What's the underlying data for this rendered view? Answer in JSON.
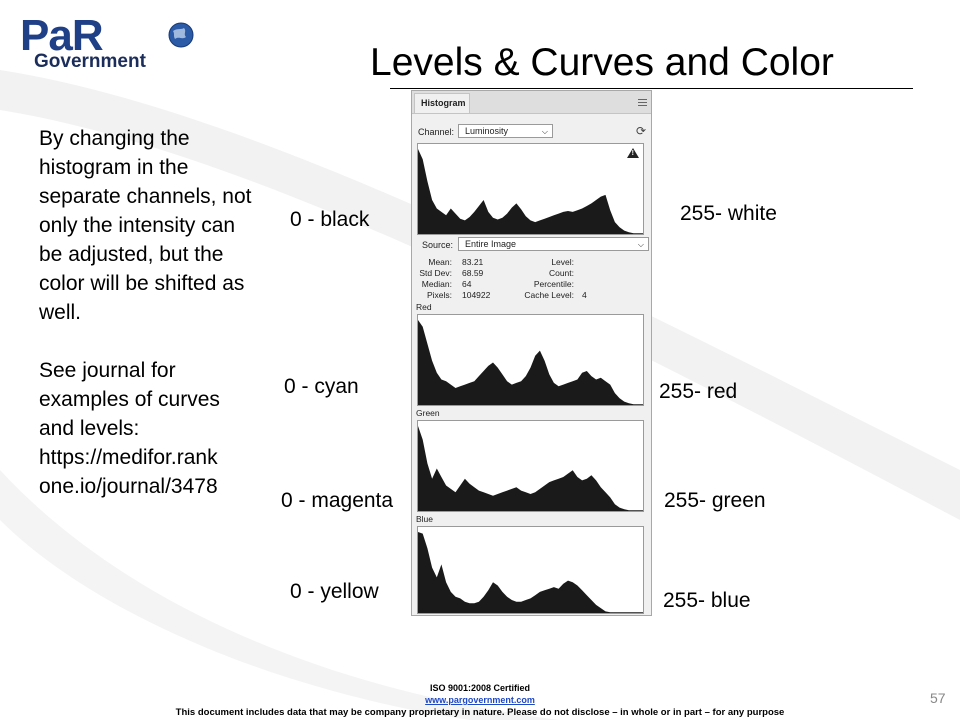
{
  "logo": {
    "par": "PaR",
    "government": "Government"
  },
  "title": "Levels & Curves and Color",
  "body": {
    "paragraph1": "By changing the histogram in the separate channels, not only the intensity can be adjusted, but the color will be shifted as well.",
    "paragraph2_line1": "See journal for examples of curves and levels:",
    "paragraph2_line2": "https://medifor.rank one.io/journal/3478"
  },
  "labels": {
    "black": "0 - black",
    "white": "255- white",
    "cyan": "0 - cyan",
    "red": "255- red",
    "magenta": "0 - magenta",
    "green": "255- green",
    "yellow": "0 - yellow",
    "blue": "255- blue"
  },
  "panel": {
    "tab": "Histogram",
    "channel_label": "Channel:",
    "channel_value": "Luminosity",
    "source_label": "Source:",
    "source_value": "Entire Image",
    "stats": {
      "mean_label": "Mean:",
      "mean": "83.21",
      "std_label": "Std Dev:",
      "std": "68.59",
      "median_label": "Median:",
      "median": "64",
      "pixels_label": "Pixels:",
      "pixels": "104922",
      "level_label": "Level:",
      "count_label": "Count:",
      "percentile_label": "Percentile:",
      "cache_label": "Cache Level:",
      "cache": "4"
    },
    "channels": {
      "red": "Red",
      "green": "Green",
      "blue": "Blue"
    },
    "icons": {
      "menu": "panel-menu-icon",
      "refresh": "refresh-icon",
      "warning": "warning-icon",
      "dropdown": "chevron-down-icon"
    }
  },
  "chart_data": [
    {
      "type": "area",
      "name": "Luminosity",
      "values": [
        100,
        88,
        62,
        40,
        30,
        26,
        22,
        30,
        24,
        18,
        16,
        20,
        26,
        33,
        40,
        26,
        19,
        17,
        19,
        24,
        31,
        36,
        29,
        21,
        16,
        14,
        16,
        18,
        20,
        22,
        24,
        26,
        27,
        26,
        28,
        30,
        33,
        36,
        40,
        44,
        46,
        28,
        14,
        8,
        4,
        2,
        1,
        1,
        1
      ]
    },
    {
      "type": "area",
      "name": "Red",
      "values": [
        100,
        92,
        72,
        52,
        38,
        30,
        28,
        24,
        20,
        22,
        24,
        26,
        28,
        34,
        40,
        46,
        50,
        44,
        36,
        28,
        24,
        26,
        28,
        34,
        44,
        58,
        64,
        52,
        36,
        26,
        22,
        24,
        26,
        28,
        30,
        38,
        40,
        34,
        30,
        32,
        28,
        24,
        14,
        8,
        4,
        2,
        1,
        1,
        1
      ]
    },
    {
      "type": "area",
      "name": "Green",
      "values": [
        100,
        84,
        56,
        38,
        50,
        40,
        30,
        26,
        22,
        30,
        38,
        32,
        28,
        24,
        22,
        20,
        18,
        20,
        22,
        24,
        26,
        28,
        24,
        22,
        20,
        22,
        26,
        30,
        34,
        36,
        38,
        40,
        44,
        48,
        40,
        36,
        38,
        42,
        36,
        28,
        22,
        16,
        8,
        4,
        2,
        1,
        1,
        1,
        1
      ]
    },
    {
      "type": "area",
      "name": "Blue",
      "values": [
        100,
        98,
        80,
        56,
        44,
        60,
        38,
        26,
        20,
        18,
        14,
        12,
        12,
        14,
        20,
        28,
        38,
        34,
        26,
        20,
        16,
        14,
        14,
        16,
        18,
        22,
        26,
        28,
        30,
        32,
        30,
        36,
        40,
        38,
        34,
        28,
        22,
        16,
        10,
        6,
        2,
        1,
        1,
        1,
        1,
        1,
        1,
        1,
        1
      ]
    }
  ],
  "footer": {
    "iso": "ISO 9001:2008 Certified",
    "website": "www.pargovernment.com",
    "disclaimer": "This document includes data that may be company proprietary in nature. Please do not disclose – in whole or in part – for any purpose"
  },
  "page_number": "57",
  "colors": {
    "brand_blue": "#1f3f86",
    "link_blue": "#1f48c4",
    "hist_fill": "#1a1a1a"
  }
}
